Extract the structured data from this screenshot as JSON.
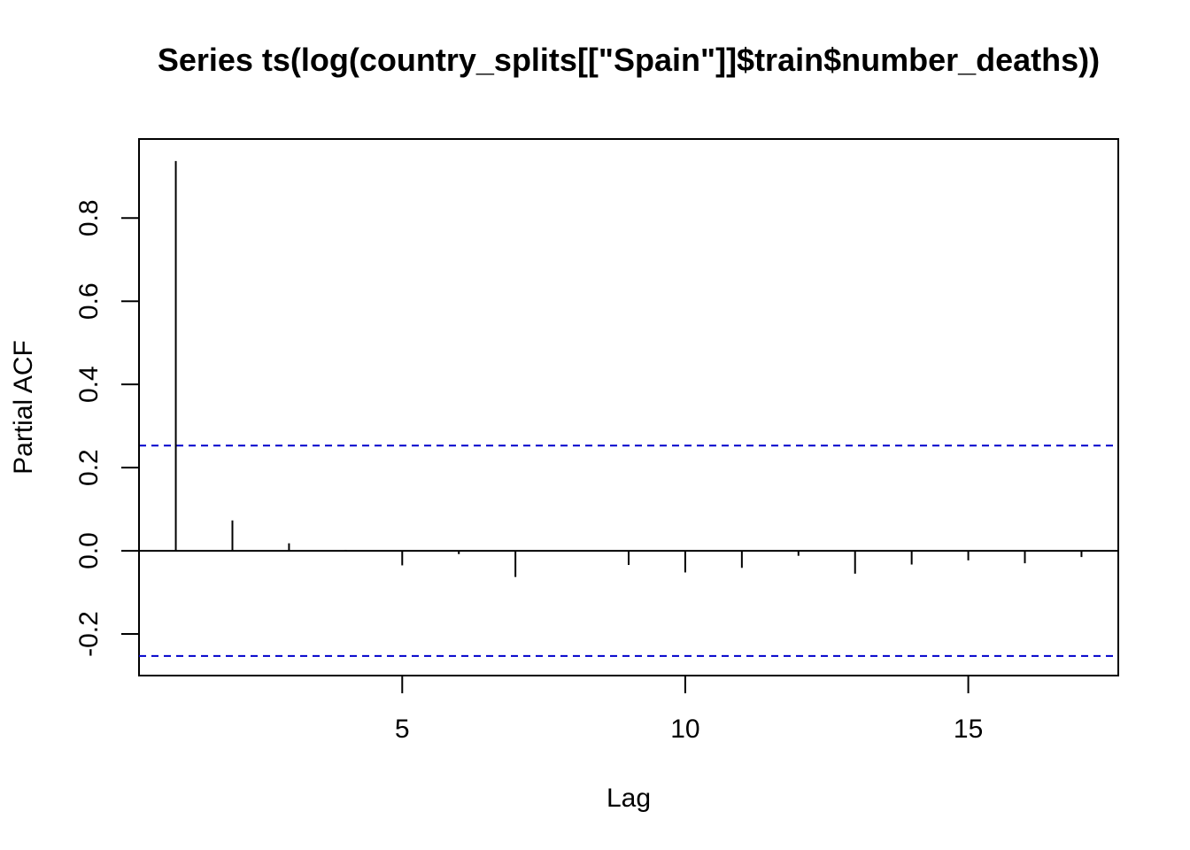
{
  "chart_data": {
    "type": "bar",
    "title": "Series  ts(log(country_splits[[\"Spain\"]]$train$number_deaths))",
    "xlabel": "Lag",
    "ylabel": "Partial ACF",
    "xlim": [
      0.35,
      17.65
    ],
    "ylim": [
      -0.3,
      0.99
    ],
    "x_ticks": [
      5,
      10,
      15
    ],
    "y_ticks": [
      -0.2,
      0.0,
      0.2,
      0.4,
      0.6,
      0.8
    ],
    "y_tick_labels": [
      "-0.2",
      "0.0",
      "0.2",
      "0.4",
      "0.6",
      "0.8"
    ],
    "lags": [
      1,
      2,
      3,
      4,
      5,
      6,
      7,
      8,
      9,
      10,
      11,
      12,
      13,
      14,
      15,
      16,
      17
    ],
    "values": [
      0.937,
      0.073,
      0.018,
      0.002,
      -0.035,
      -0.008,
      -0.063,
      0.001,
      -0.034,
      -0.052,
      -0.041,
      -0.012,
      -0.055,
      -0.033,
      -0.023,
      -0.03,
      -0.015
    ],
    "confidence_bound": 0.253,
    "bar_color": "#000000",
    "ci_color": "#0000cc",
    "grid": false,
    "legend": "none"
  }
}
